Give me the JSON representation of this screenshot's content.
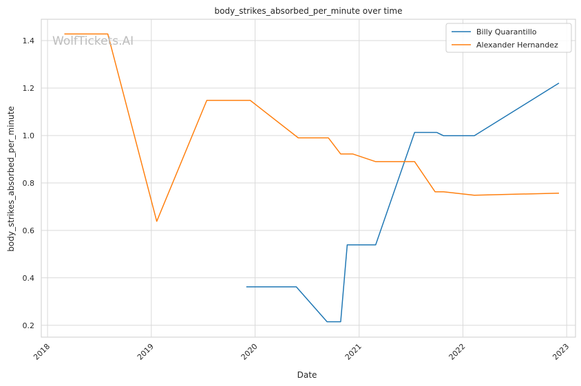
{
  "chart_data": {
    "type": "line",
    "title": "body_strikes_absorbed_per_minute over time",
    "xlabel": "Date",
    "ylabel": "body_strikes_absorbed_per_minute",
    "x_ticks": [
      "2018",
      "2019",
      "2020",
      "2021",
      "2022",
      "2023"
    ],
    "y_ticks": [
      0.2,
      0.4,
      0.6,
      0.8,
      1.0,
      1.2,
      1.4
    ],
    "xlim": [
      "2017-12-10",
      "2023-02-01"
    ],
    "ylim": [
      0.15,
      1.49
    ],
    "grid": true,
    "legend_position": "top-right",
    "watermark": "WolfTickets.AI",
    "series": [
      {
        "name": "Billy Quarantillo",
        "color": "#1f77b4",
        "points": [
          {
            "date": "2019-12-01",
            "value": 0.362
          },
          {
            "date": "2020-05-25",
            "value": 0.362
          },
          {
            "date": "2020-09-10",
            "value": 0.215
          },
          {
            "date": "2020-10-28",
            "value": 0.215
          },
          {
            "date": "2020-11-20",
            "value": 0.539
          },
          {
            "date": "2021-02-28",
            "value": 0.539
          },
          {
            "date": "2021-07-15",
            "value": 1.013
          },
          {
            "date": "2021-10-01",
            "value": 1.013
          },
          {
            "date": "2021-10-25",
            "value": 0.999
          },
          {
            "date": "2022-02-10",
            "value": 0.999
          },
          {
            "date": "2022-12-05",
            "value": 1.221
          }
        ]
      },
      {
        "name": "Alexander Hernandez",
        "color": "#ff7f0e",
        "points": [
          {
            "date": "2018-03-01",
            "value": 1.428
          },
          {
            "date": "2018-08-01",
            "value": 1.428
          },
          {
            "date": "2019-01-20",
            "value": 0.638
          },
          {
            "date": "2019-07-15",
            "value": 1.148
          },
          {
            "date": "2019-12-15",
            "value": 1.148
          },
          {
            "date": "2020-06-01",
            "value": 0.99
          },
          {
            "date": "2020-09-15",
            "value": 0.99
          },
          {
            "date": "2020-10-28",
            "value": 0.922
          },
          {
            "date": "2020-12-10",
            "value": 0.922
          },
          {
            "date": "2021-02-28",
            "value": 0.89
          },
          {
            "date": "2021-07-15",
            "value": 0.89
          },
          {
            "date": "2021-09-25",
            "value": 0.763
          },
          {
            "date": "2021-10-25",
            "value": 0.763
          },
          {
            "date": "2022-02-10",
            "value": 0.748
          },
          {
            "date": "2022-12-05",
            "value": 0.757
          }
        ]
      }
    ]
  }
}
